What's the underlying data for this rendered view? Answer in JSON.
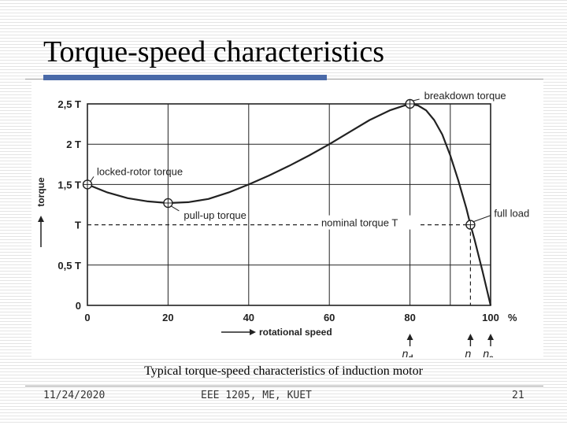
{
  "slide": {
    "title": "Torque-speed characteristics",
    "caption": "Typical torque-speed characteristics of induction motor",
    "footer_date": "11/24/2020",
    "footer_course": "EEE 1205, ME, KUET",
    "footer_page": "21"
  },
  "colors": {
    "accent": "#4a6aa8",
    "ink": "#222222"
  },
  "chart_data": {
    "type": "line",
    "title": "",
    "xlabel": "rotational speed",
    "ylabel": "torque",
    "x_ticks": [
      {
        "value": 0,
        "label": "0"
      },
      {
        "value": 20,
        "label": "20"
      },
      {
        "value": 40,
        "label": "40"
      },
      {
        "value": 60,
        "label": "60"
      },
      {
        "value": 80,
        "label": "80"
      },
      {
        "value": 100,
        "label": "100"
      }
    ],
    "x_unit": "%",
    "x_extra_gridline": 90,
    "y_ticks": [
      {
        "value": 0,
        "label": "0"
      },
      {
        "value": 0.5,
        "label": "0,5 T"
      },
      {
        "value": 1.0,
        "label": "T"
      },
      {
        "value": 1.5,
        "label": "1,5 T"
      },
      {
        "value": 2.0,
        "label": "2 T"
      },
      {
        "value": 2.5,
        "label": "2,5 T"
      }
    ],
    "xlim": [
      0,
      100
    ],
    "ylim": [
      0,
      2.5
    ],
    "series": [
      {
        "name": "torque",
        "x": [
          0,
          5,
          10,
          15,
          20,
          25,
          30,
          35,
          40,
          45,
          50,
          55,
          60,
          65,
          70,
          75,
          78,
          80,
          82,
          84,
          86,
          88,
          90,
          92,
          94,
          95,
          96,
          98,
          100
        ],
        "y": [
          1.5,
          1.4,
          1.33,
          1.29,
          1.27,
          1.28,
          1.32,
          1.4,
          1.5,
          1.61,
          1.73,
          1.86,
          2.0,
          2.15,
          2.3,
          2.42,
          2.47,
          2.5,
          2.48,
          2.42,
          2.3,
          2.12,
          1.86,
          1.55,
          1.2,
          1.0,
          0.82,
          0.42,
          0
        ]
      }
    ],
    "points": [
      {
        "name": "locked-rotor torque",
        "x": 0,
        "y": 1.5,
        "label": "locked-rotor torque"
      },
      {
        "name": "pull-up torque",
        "x": 20,
        "y": 1.27,
        "label": "pull-up torque"
      },
      {
        "name": "breakdown torque",
        "x": 80,
        "y": 2.5,
        "label": "breakdown torque"
      },
      {
        "name": "full load",
        "x": 95,
        "y": 1.0,
        "label": "full load"
      }
    ],
    "reference_line": {
      "y": 1.0,
      "label": "nominal torque T"
    },
    "speed_markers": [
      {
        "x": 80,
        "label": "n",
        "sub": "d"
      },
      {
        "x": 95,
        "label": "n",
        "sub": ""
      },
      {
        "x": 100,
        "label": "n",
        "sub": "s"
      }
    ]
  }
}
